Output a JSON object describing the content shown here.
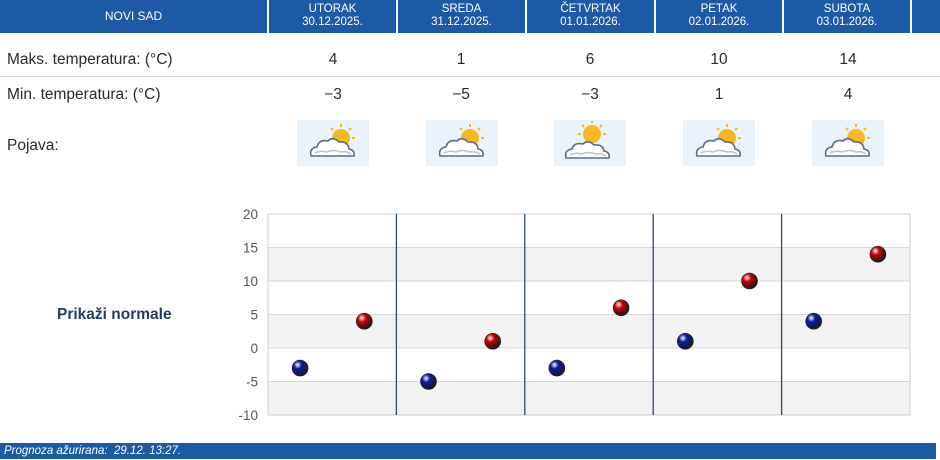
{
  "city": "NOVI SAD",
  "days": [
    {
      "day": "UTORAK",
      "date": "30.12.2025.",
      "max": "4",
      "min": "−3",
      "icon": "sun-behind-cloud-icon"
    },
    {
      "day": "SREDA",
      "date": "31.12.2025.",
      "max": "1",
      "min": "−5",
      "icon": "sun-behind-cloud-icon"
    },
    {
      "day": "ČETVRTAK",
      "date": "01.01.2026.",
      "max": "6",
      "min": "−3",
      "icon": "sun-behind-cloud-icon"
    },
    {
      "day": "PETAK",
      "date": "02.01.2026.",
      "max": "10",
      "min": "1",
      "icon": "sun-behind-cloud-icon"
    },
    {
      "day": "SUBOTA",
      "date": "03.01.2026.",
      "max": "14",
      "min": "4",
      "icon": "sun-behind-cloud-icon"
    }
  ],
  "labels": {
    "max_temp": "Maks. temperatura: (°C)",
    "min_temp": "Min. temperatura: (°C)",
    "phenomenon": "Pojava:",
    "show_normals": "Prikaži normale"
  },
  "footer": {
    "updated_label": "Prognoza ažurirana:",
    "updated_value": "29.12. 13:27."
  },
  "colors": {
    "header_bg": "#1d5aa6",
    "max_point": "#cc0000",
    "min_point": "#0a1aa8"
  },
  "chart_data": {
    "type": "scatter",
    "categories": [
      "UTORAK",
      "SREDA",
      "ČETVRTAK",
      "PETAK",
      "SUBOTA"
    ],
    "ylim": [
      -10,
      20
    ],
    "yticks": [
      "20",
      "15",
      "10",
      "5",
      "0",
      "-5",
      "-10"
    ],
    "ytick_values": [
      20,
      15,
      10,
      5,
      0,
      -5,
      -10
    ],
    "series": [
      {
        "values": [
          -3,
          -5,
          -3,
          1,
          4
        ],
        "color": "#0a1aa8"
      },
      {
        "values": [
          4,
          1,
          6,
          10,
          14
        ],
        "color": "#cc0000"
      }
    ],
    "grid": true
  }
}
